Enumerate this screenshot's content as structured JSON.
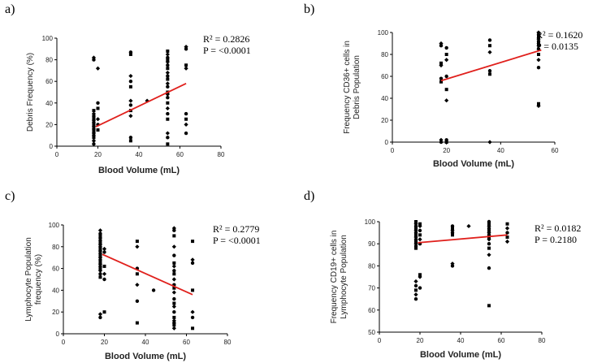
{
  "chart_data": [
    {
      "id": "a",
      "type": "scatter",
      "panel_label": "a)",
      "xlabel": "Blood Volume (mL)",
      "ylabel": [
        "Debris Frequency (%)"
      ],
      "xlim": [
        0,
        80
      ],
      "ylim": [
        0,
        100
      ],
      "xticks": [
        0,
        20,
        40,
        60,
        80
      ],
      "yticks": [
        0,
        20,
        40,
        60,
        80,
        100
      ],
      "xtick_labels": [
        "0",
        "20",
        "40",
        "60",
        "80"
      ],
      "ytick_labels": [
        "0",
        "20",
        "40",
        "60",
        "80",
        "100"
      ],
      "stats": [
        "R² = 0.2826",
        "P = <0.0001"
      ],
      "fit": {
        "x": [
          19,
          63
        ],
        "y": [
          18,
          58
        ]
      },
      "points": [
        [
          18,
          2
        ],
        [
          18,
          5
        ],
        [
          18,
          8
        ],
        [
          18,
          10
        ],
        [
          18,
          12
        ],
        [
          18,
          14
        ],
        [
          18,
          16
        ],
        [
          18,
          18
        ],
        [
          18,
          20
        ],
        [
          18,
          22
        ],
        [
          18,
          24
        ],
        [
          18,
          26
        ],
        [
          18,
          28
        ],
        [
          18,
          30
        ],
        [
          18,
          33
        ],
        [
          18,
          80
        ],
        [
          18,
          82
        ],
        [
          20,
          15
        ],
        [
          20,
          20
        ],
        [
          20,
          25
        ],
        [
          20,
          35
        ],
        [
          20,
          40
        ],
        [
          20,
          72
        ],
        [
          36,
          5
        ],
        [
          36,
          8
        ],
        [
          36,
          28
        ],
        [
          36,
          33
        ],
        [
          36,
          38
        ],
        [
          36,
          42
        ],
        [
          36,
          55
        ],
        [
          36,
          60
        ],
        [
          36,
          65
        ],
        [
          36,
          85
        ],
        [
          36,
          87
        ],
        [
          44,
          42
        ],
        [
          54,
          2
        ],
        [
          54,
          8
        ],
        [
          54,
          12
        ],
        [
          54,
          25
        ],
        [
          54,
          30
        ],
        [
          54,
          35
        ],
        [
          54,
          40
        ],
        [
          54,
          45
        ],
        [
          54,
          48
        ],
        [
          54,
          50
        ],
        [
          54,
          55
        ],
        [
          54,
          58
        ],
        [
          54,
          62
        ],
        [
          54,
          65
        ],
        [
          54,
          68
        ],
        [
          54,
          72
        ],
        [
          54,
          75
        ],
        [
          54,
          78
        ],
        [
          54,
          80
        ],
        [
          54,
          82
        ],
        [
          54,
          85
        ],
        [
          54,
          88
        ],
        [
          63,
          12
        ],
        [
          63,
          20
        ],
        [
          63,
          25
        ],
        [
          63,
          30
        ],
        [
          63,
          72
        ],
        [
          63,
          75
        ],
        [
          63,
          90
        ],
        [
          63,
          92
        ]
      ]
    },
    {
      "id": "b",
      "type": "scatter",
      "panel_label": "b)",
      "xlabel": "Blood Volume (mL)",
      "ylabel": [
        "Frequency CD36+ cells in",
        "Debris Population"
      ],
      "xlim": [
        0,
        60
      ],
      "ylim": [
        0,
        100
      ],
      "xticks": [
        0,
        20,
        40,
        60
      ],
      "yticks": [
        0,
        20,
        40,
        60,
        80,
        100
      ],
      "xtick_labels": [
        "0",
        "20",
        "40",
        "60"
      ],
      "ytick_labels": [
        "0",
        "20",
        "40",
        "60",
        "80",
        "100"
      ],
      "stats": [
        "R² = 0.1620",
        "P = 0.0135"
      ],
      "fit": {
        "x": [
          18,
          55
        ],
        "y": [
          56,
          84
        ]
      },
      "points": [
        [
          18,
          0
        ],
        [
          18,
          2
        ],
        [
          18,
          55
        ],
        [
          18,
          58
        ],
        [
          18,
          70
        ],
        [
          18,
          72
        ],
        [
          18,
          88
        ],
        [
          18,
          90
        ],
        [
          20,
          0
        ],
        [
          20,
          2
        ],
        [
          20,
          38
        ],
        [
          20,
          48
        ],
        [
          20,
          60
        ],
        [
          20,
          75
        ],
        [
          20,
          80
        ],
        [
          20,
          86
        ],
        [
          36,
          0
        ],
        [
          36,
          62
        ],
        [
          36,
          65
        ],
        [
          36,
          82
        ],
        [
          36,
          88
        ],
        [
          36,
          93
        ],
        [
          54,
          33
        ],
        [
          54,
          35
        ],
        [
          54,
          68
        ],
        [
          54,
          75
        ],
        [
          54,
          80
        ],
        [
          54,
          85
        ],
        [
          54,
          88
        ],
        [
          54,
          90
        ],
        [
          54,
          92
        ],
        [
          54,
          94
        ],
        [
          54,
          96
        ],
        [
          54,
          98
        ],
        [
          54,
          100
        ]
      ]
    },
    {
      "id": "c",
      "type": "scatter",
      "panel_label": "c)",
      "xlabel": "Blood Volume (mL)",
      "ylabel": [
        "Lymphocyte Population",
        "frequency (%)"
      ],
      "xlim": [
        0,
        80
      ],
      "ylim": [
        0,
        100
      ],
      "xticks": [
        0,
        20,
        40,
        60,
        80
      ],
      "yticks": [
        0,
        20,
        40,
        60,
        80,
        100
      ],
      "xtick_labels": [
        "0",
        "20",
        "40",
        "60",
        "80"
      ],
      "ytick_labels": [
        "0",
        "20",
        "40",
        "60",
        "80",
        "100"
      ],
      "stats": [
        "R² = 0.2779",
        "P = <0.0001"
      ],
      "fit": {
        "x": [
          19,
          63
        ],
        "y": [
          73,
          36
        ]
      },
      "points": [
        [
          18,
          15
        ],
        [
          18,
          18
        ],
        [
          18,
          52
        ],
        [
          18,
          55
        ],
        [
          18,
          58
        ],
        [
          18,
          60
        ],
        [
          18,
          62
        ],
        [
          18,
          64
        ],
        [
          18,
          66
        ],
        [
          18,
          68
        ],
        [
          18,
          70
        ],
        [
          18,
          72
        ],
        [
          18,
          74
        ],
        [
          18,
          76
        ],
        [
          18,
          78
        ],
        [
          18,
          80
        ],
        [
          18,
          82
        ],
        [
          18,
          84
        ],
        [
          18,
          86
        ],
        [
          18,
          88
        ],
        [
          18,
          90
        ],
        [
          18,
          92
        ],
        [
          18,
          95
        ],
        [
          20,
          20
        ],
        [
          20,
          50
        ],
        [
          20,
          55
        ],
        [
          20,
          62
        ],
        [
          20,
          75
        ],
        [
          20,
          78
        ],
        [
          36,
          10
        ],
        [
          36,
          30
        ],
        [
          36,
          45
        ],
        [
          36,
          55
        ],
        [
          36,
          60
        ],
        [
          36,
          80
        ],
        [
          36,
          85
        ],
        [
          44,
          40
        ],
        [
          54,
          5
        ],
        [
          54,
          8
        ],
        [
          54,
          10
        ],
        [
          54,
          12
        ],
        [
          54,
          15
        ],
        [
          54,
          20
        ],
        [
          54,
          25
        ],
        [
          54,
          28
        ],
        [
          54,
          32
        ],
        [
          54,
          38
        ],
        [
          54,
          42
        ],
        [
          54,
          45
        ],
        [
          54,
          50
        ],
        [
          54,
          55
        ],
        [
          54,
          58
        ],
        [
          54,
          62
        ],
        [
          54,
          65
        ],
        [
          54,
          72
        ],
        [
          54,
          80
        ],
        [
          54,
          90
        ],
        [
          54,
          95
        ],
        [
          54,
          97
        ],
        [
          63,
          5
        ],
        [
          63,
          15
        ],
        [
          63,
          20
        ],
        [
          63,
          40
        ],
        [
          63,
          65
        ],
        [
          63,
          68
        ],
        [
          63,
          85
        ]
      ]
    },
    {
      "id": "d",
      "type": "scatter",
      "panel_label": "d)",
      "xlabel": "Blood Volume (mL)",
      "ylabel": [
        "Frequency CD19+ cells in",
        "Lymphocyte Population"
      ],
      "xlim": [
        0,
        80
      ],
      "ylim": [
        50,
        100
      ],
      "xticks": [
        0,
        20,
        40,
        60,
        80
      ],
      "yticks": [
        50,
        60,
        70,
        80,
        90,
        100
      ],
      "xtick_labels": [
        "0",
        "20",
        "40",
        "60",
        "80"
      ],
      "ytick_labels": [
        "50",
        "60",
        "70",
        "80",
        "90",
        "100"
      ],
      "stats": [
        "R² = 0.0182",
        "P = 0.2180"
      ],
      "fit": {
        "x": [
          19,
          63
        ],
        "y": [
          90.5,
          94
        ]
      },
      "points": [
        [
          18,
          65
        ],
        [
          18,
          67
        ],
        [
          18,
          69
        ],
        [
          18,
          71
        ],
        [
          18,
          73
        ],
        [
          18,
          88
        ],
        [
          18,
          89
        ],
        [
          18,
          90
        ],
        [
          18,
          91
        ],
        [
          18,
          92
        ],
        [
          18,
          93
        ],
        [
          18,
          94
        ],
        [
          18,
          95
        ],
        [
          18,
          96
        ],
        [
          18,
          97
        ],
        [
          18,
          98
        ],
        [
          18,
          99
        ],
        [
          18,
          100
        ],
        [
          20,
          70
        ],
        [
          20,
          75
        ],
        [
          20,
          76
        ],
        [
          20,
          90
        ],
        [
          20,
          92
        ],
        [
          20,
          94
        ],
        [
          20,
          96
        ],
        [
          20,
          98
        ],
        [
          20,
          99
        ],
        [
          36,
          80
        ],
        [
          36,
          81
        ],
        [
          36,
          94
        ],
        [
          36,
          95
        ],
        [
          36,
          96
        ],
        [
          36,
          97
        ],
        [
          36,
          98
        ],
        [
          44,
          98
        ],
        [
          54,
          62
        ],
        [
          54,
          79
        ],
        [
          54,
          85
        ],
        [
          54,
          88
        ],
        [
          54,
          90
        ],
        [
          54,
          92
        ],
        [
          54,
          93
        ],
        [
          54,
          94
        ],
        [
          54,
          95
        ],
        [
          54,
          96
        ],
        [
          54,
          97
        ],
        [
          54,
          98
        ],
        [
          54,
          99
        ],
        [
          54,
          100
        ],
        [
          63,
          91
        ],
        [
          63,
          93
        ],
        [
          63,
          95
        ],
        [
          63,
          97
        ],
        [
          63,
          99
        ]
      ]
    }
  ]
}
